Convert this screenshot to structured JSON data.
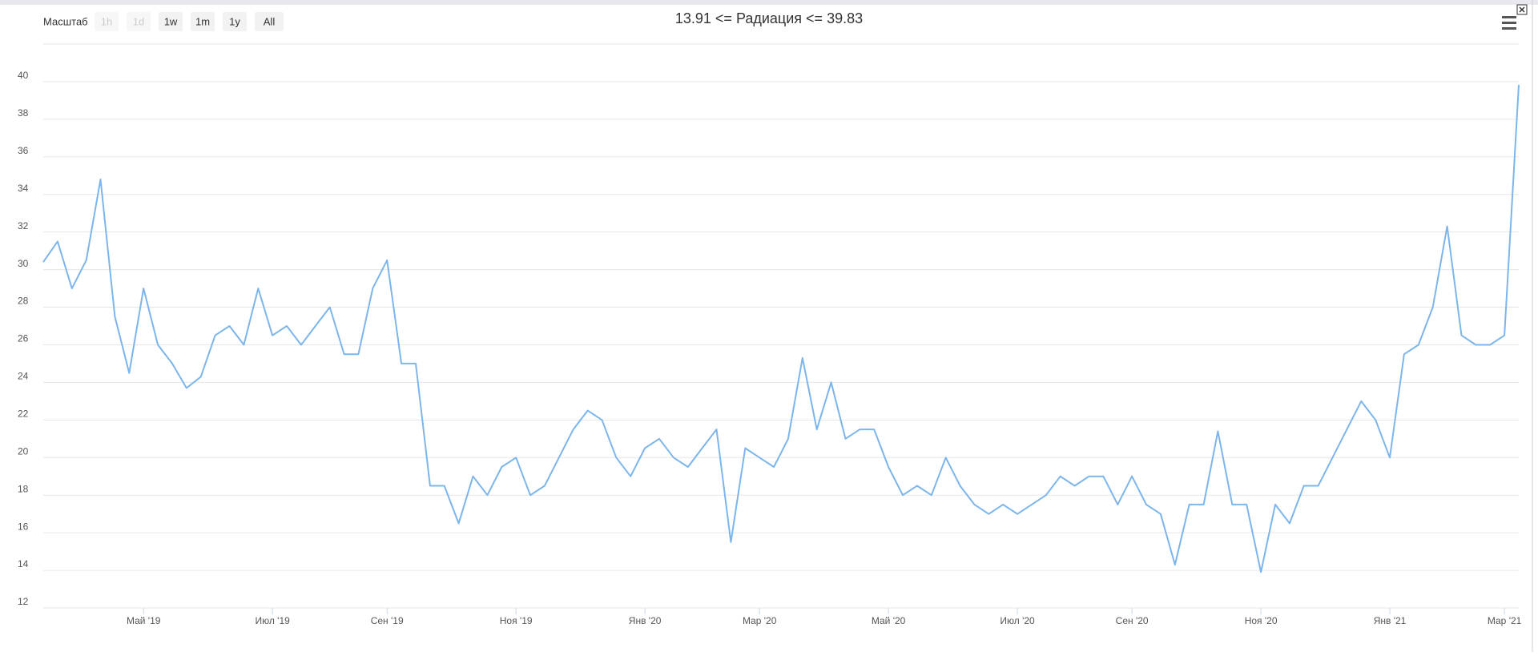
{
  "toolbar": {
    "label": "Масштаб",
    "buttons": [
      "1h",
      "1d",
      "1w",
      "1m",
      "1y",
      "All"
    ],
    "disabled": [
      true,
      true,
      false,
      false,
      false,
      false
    ]
  },
  "chart_data": {
    "type": "line",
    "title": "13.91 <= Радиация <= 39.83",
    "categories": [
      null,
      null,
      null,
      null,
      null,
      null,
      null,
      "Май '19",
      null,
      null,
      null,
      null,
      null,
      null,
      null,
      null,
      "Июл '19",
      null,
      null,
      null,
      null,
      null,
      null,
      null,
      "Сен '19",
      null,
      null,
      null,
      null,
      null,
      null,
      null,
      null,
      "Ноя '19",
      null,
      null,
      null,
      null,
      null,
      null,
      null,
      null,
      "Янв '20",
      null,
      null,
      null,
      null,
      null,
      null,
      null,
      "Мар '20",
      null,
      null,
      null,
      null,
      null,
      null,
      null,
      null,
      "Май '20",
      null,
      null,
      null,
      null,
      null,
      null,
      null,
      null,
      "Июл '20",
      null,
      null,
      null,
      null,
      null,
      null,
      null,
      "Сен '20",
      null,
      null,
      null,
      null,
      null,
      null,
      null,
      null,
      "Ноя '20",
      null,
      null,
      null,
      null,
      null,
      null,
      null,
      null,
      "Янв '21",
      null,
      null,
      null,
      null,
      null,
      null,
      null,
      "Мар '21",
      null
    ],
    "values": [
      30.4,
      31.5,
      29,
      30.5,
      34.8,
      27.5,
      24.5,
      29,
      26,
      25,
      23.7,
      24.3,
      26.5,
      27,
      26,
      29,
      26.5,
      27,
      26,
      27,
      28,
      25.5,
      25.5,
      29,
      30.5,
      25,
      25,
      18.5,
      18.5,
      16.5,
      19,
      18,
      19.5,
      20,
      18,
      18.5,
      20,
      21.5,
      22.5,
      22,
      20,
      19,
      20.5,
      21,
      20,
      19.5,
      20.5,
      21.5,
      15.5,
      20.5,
      20,
      19.5,
      21,
      25.3,
      21.5,
      24,
      21,
      21.5,
      21.5,
      19.5,
      18,
      18.5,
      18,
      20,
      18.5,
      17.5,
      17,
      17.5,
      17,
      17.5,
      18,
      19,
      18.5,
      19,
      19,
      17.5,
      19,
      17.5,
      17,
      14.3,
      17.5,
      17.5,
      21.4,
      17.5,
      17.5,
      13.91,
      17.5,
      16.5,
      18.5,
      18.5,
      20,
      21.5,
      23,
      22,
      20,
      25.5,
      26,
      28,
      32.3,
      26.5,
      26,
      26,
      26.5,
      39.83
    ],
    "color": "#7cb5ec",
    "ylim": [
      12,
      42
    ],
    "yticks": [
      12,
      14,
      16,
      18,
      20,
      22,
      24,
      26,
      28,
      30,
      32,
      34,
      36,
      38,
      40
    ],
    "grid": true
  }
}
